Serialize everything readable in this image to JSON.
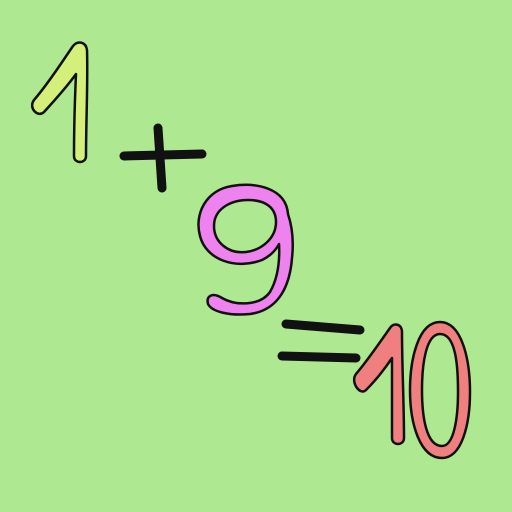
{
  "equation": {
    "operand_a": "1",
    "plus_sign": "+",
    "operand_b": "9",
    "equals_sign": "=",
    "result": "10"
  },
  "colors": {
    "background": "#aee890",
    "operand_a": "#d4f07a",
    "operand_b": "#ee82ee",
    "result": "#f08080",
    "ink": "#111111"
  }
}
